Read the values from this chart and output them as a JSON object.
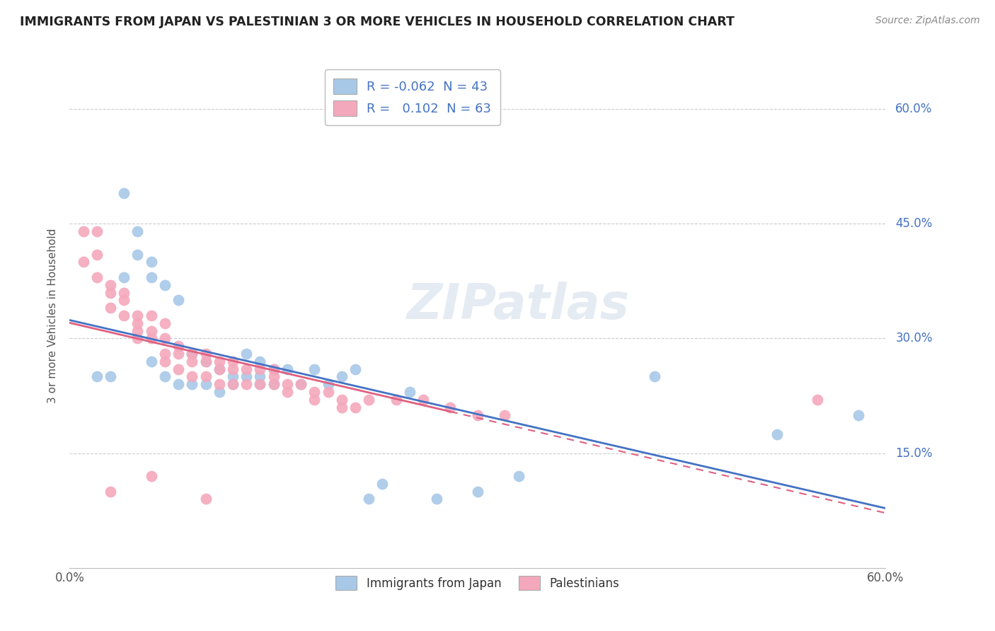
{
  "title": "IMMIGRANTS FROM JAPAN VS PALESTINIAN 3 OR MORE VEHICLES IN HOUSEHOLD CORRELATION CHART",
  "source": "Source: ZipAtlas.com",
  "ylabel": "3 or more Vehicles in Household",
  "ytick_values": [
    0.15,
    0.3,
    0.45,
    0.6
  ],
  "ytick_labels": [
    "15.0%",
    "30.0%",
    "45.0%",
    "60.0%"
  ],
  "xlim": [
    0.0,
    0.6
  ],
  "ylim": [
    0.0,
    0.66
  ],
  "legend_japan_r": "-0.062",
  "legend_japan_n": "43",
  "legend_pal_r": "0.102",
  "legend_pal_n": "63",
  "japan_color": "#a8c8e8",
  "pal_color": "#f4a8bc",
  "japan_trend_color": "#4472c4",
  "pal_trend_color": "#e06080",
  "watermark": "ZIPatlas",
  "japan_x": [
    0.02,
    0.03,
    0.04,
    0.04,
    0.05,
    0.05,
    0.06,
    0.06,
    0.06,
    0.07,
    0.07,
    0.08,
    0.08,
    0.09,
    0.09,
    0.1,
    0.1,
    0.11,
    0.11,
    0.12,
    0.12,
    0.13,
    0.13,
    0.14,
    0.14,
    0.14,
    0.15,
    0.15,
    0.16,
    0.17,
    0.18,
    0.19,
    0.2,
    0.21,
    0.22,
    0.23,
    0.25,
    0.27,
    0.3,
    0.33,
    0.43,
    0.52,
    0.58
  ],
  "japan_y": [
    0.25,
    0.25,
    0.49,
    0.38,
    0.41,
    0.44,
    0.4,
    0.38,
    0.27,
    0.37,
    0.25,
    0.35,
    0.24,
    0.28,
    0.24,
    0.27,
    0.24,
    0.26,
    0.23,
    0.25,
    0.24,
    0.28,
    0.25,
    0.27,
    0.25,
    0.24,
    0.26,
    0.24,
    0.26,
    0.24,
    0.26,
    0.24,
    0.25,
    0.26,
    0.09,
    0.11,
    0.23,
    0.09,
    0.1,
    0.12,
    0.25,
    0.175,
    0.2
  ],
  "pal_x": [
    0.01,
    0.01,
    0.02,
    0.02,
    0.02,
    0.03,
    0.03,
    0.03,
    0.04,
    0.04,
    0.04,
    0.05,
    0.05,
    0.05,
    0.05,
    0.06,
    0.06,
    0.06,
    0.07,
    0.07,
    0.07,
    0.07,
    0.08,
    0.08,
    0.08,
    0.09,
    0.09,
    0.09,
    0.1,
    0.1,
    0.1,
    0.11,
    0.11,
    0.11,
    0.12,
    0.12,
    0.12,
    0.13,
    0.13,
    0.14,
    0.14,
    0.15,
    0.15,
    0.15,
    0.16,
    0.16,
    0.17,
    0.18,
    0.18,
    0.19,
    0.2,
    0.2,
    0.21,
    0.22,
    0.24,
    0.26,
    0.28,
    0.3,
    0.32,
    0.03,
    0.06,
    0.1,
    0.55
  ],
  "pal_y": [
    0.44,
    0.4,
    0.44,
    0.41,
    0.38,
    0.37,
    0.36,
    0.34,
    0.36,
    0.35,
    0.33,
    0.33,
    0.32,
    0.31,
    0.3,
    0.33,
    0.31,
    0.3,
    0.32,
    0.3,
    0.28,
    0.27,
    0.29,
    0.28,
    0.26,
    0.28,
    0.27,
    0.25,
    0.28,
    0.27,
    0.25,
    0.27,
    0.26,
    0.24,
    0.27,
    0.26,
    0.24,
    0.26,
    0.24,
    0.26,
    0.24,
    0.26,
    0.25,
    0.24,
    0.24,
    0.23,
    0.24,
    0.23,
    0.22,
    0.23,
    0.22,
    0.21,
    0.21,
    0.22,
    0.22,
    0.22,
    0.21,
    0.2,
    0.2,
    0.1,
    0.12,
    0.09,
    0.22
  ]
}
